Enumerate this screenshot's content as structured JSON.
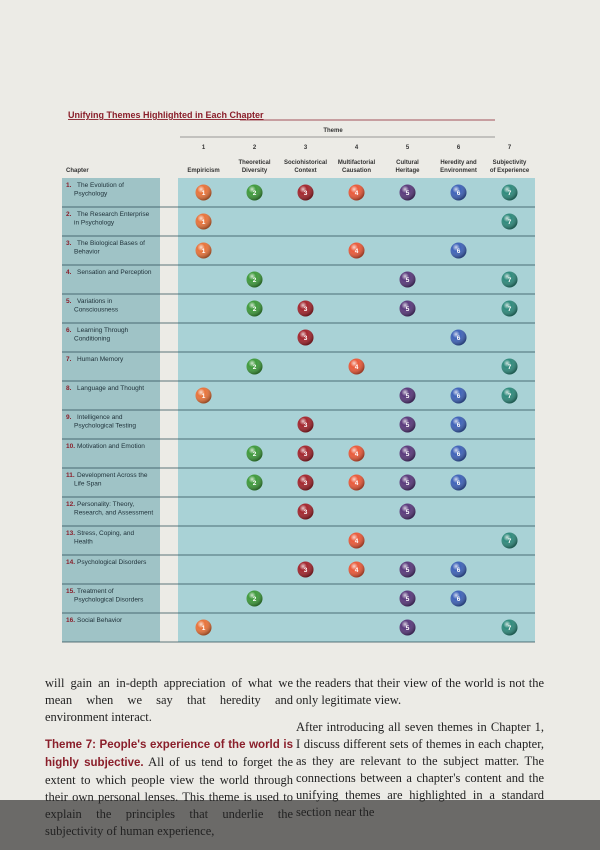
{
  "title": "Unifying Themes Highlighted in Each Chapter",
  "table": {
    "group_header": "Theme",
    "chapter_header": "Chapter",
    "themes": [
      {
        "number": "1",
        "name": "Empiricism",
        "color": "#e8743b"
      },
      {
        "number": "2",
        "name": "Theoretical Diversity",
        "color": "#3f9a3c"
      },
      {
        "number": "3",
        "name": "Sociohistorical Context",
        "color": "#a3262e"
      },
      {
        "number": "4",
        "name": "Multifactorial Causation",
        "color": "#ea5a3a"
      },
      {
        "number": "5",
        "name": "Cultural Heritage",
        "color": "#5a3a7c"
      },
      {
        "number": "6",
        "name": "Heredity and Environment",
        "color": "#3f63b8"
      },
      {
        "number": "7",
        "name": "Subjectivity of Experience",
        "color": "#2f8a7c"
      }
    ],
    "rows": [
      {
        "num": "1.",
        "title": "The Evolution of Psychology",
        "themes": [
          "1",
          "2",
          "3",
          "4",
          "5",
          "6",
          "7"
        ]
      },
      {
        "num": "2.",
        "title": "The Research Enterprise in Psychology",
        "themes": [
          "1",
          "7"
        ]
      },
      {
        "num": "3.",
        "title": "The Biological Bases of Behavior",
        "themes": [
          "1",
          "4",
          "6"
        ]
      },
      {
        "num": "4.",
        "title": "Sensation and Perception",
        "themes": [
          "2",
          "5",
          "7"
        ]
      },
      {
        "num": "5.",
        "title": "Variations in Consciousness",
        "themes": [
          "2",
          "3",
          "5",
          "7"
        ]
      },
      {
        "num": "6.",
        "title": "Learning Through Conditioning",
        "themes": [
          "3",
          "6"
        ]
      },
      {
        "num": "7.",
        "title": "Human Memory",
        "themes": [
          "2",
          "4",
          "7"
        ]
      },
      {
        "num": "8.",
        "title": "Language and Thought",
        "themes": [
          "1",
          "5",
          "6",
          "7"
        ]
      },
      {
        "num": "9.",
        "title": "Intelligence and Psychological Testing",
        "themes": [
          "3",
          "5",
          "6"
        ]
      },
      {
        "num": "10.",
        "title": "Motivation and Emotion",
        "themes": [
          "2",
          "3",
          "4",
          "5",
          "6"
        ]
      },
      {
        "num": "11.",
        "title": "Development Across the Life Span",
        "themes": [
          "2",
          "3",
          "4",
          "5",
          "6"
        ]
      },
      {
        "num": "12.",
        "title": "Personality: Theory, Research, and Assessment",
        "themes": [
          "3",
          "5"
        ]
      },
      {
        "num": "13.",
        "title": "Stress, Coping, and Health",
        "themes": [
          "4",
          "7"
        ]
      },
      {
        "num": "14.",
        "title": "Psychological Disorders",
        "themes": [
          "3",
          "4",
          "5",
          "6"
        ]
      },
      {
        "num": "15.",
        "title": "Treatment of Psychological Disorders",
        "themes": [
          "2",
          "5",
          "6"
        ]
      },
      {
        "num": "16.",
        "title": "Social Behavior",
        "themes": [
          "1",
          "5",
          "7"
        ]
      }
    ]
  },
  "body": {
    "left": {
      "p1": "will gain an in-depth appreciation of what we mean when we say that heredity and environment interact.",
      "heading": "Theme 7: People's experience of the world is highly subjective.",
      "p2": "All of us tend to forget the extent to which people view the world through their own personal lenses. This theme is used to explain the principles that underlie the subjectivity of human experience,"
    },
    "right": {
      "p1": "the readers that their view of the world is not the only legitimate view.",
      "p2": "After introducing all seven themes in Chapter 1, I discuss different sets of themes in each chapter, as they are relevant to the subject matter. The connections between a chapter's content and the unifying themes are highlighted in a standard section near the"
    }
  }
}
